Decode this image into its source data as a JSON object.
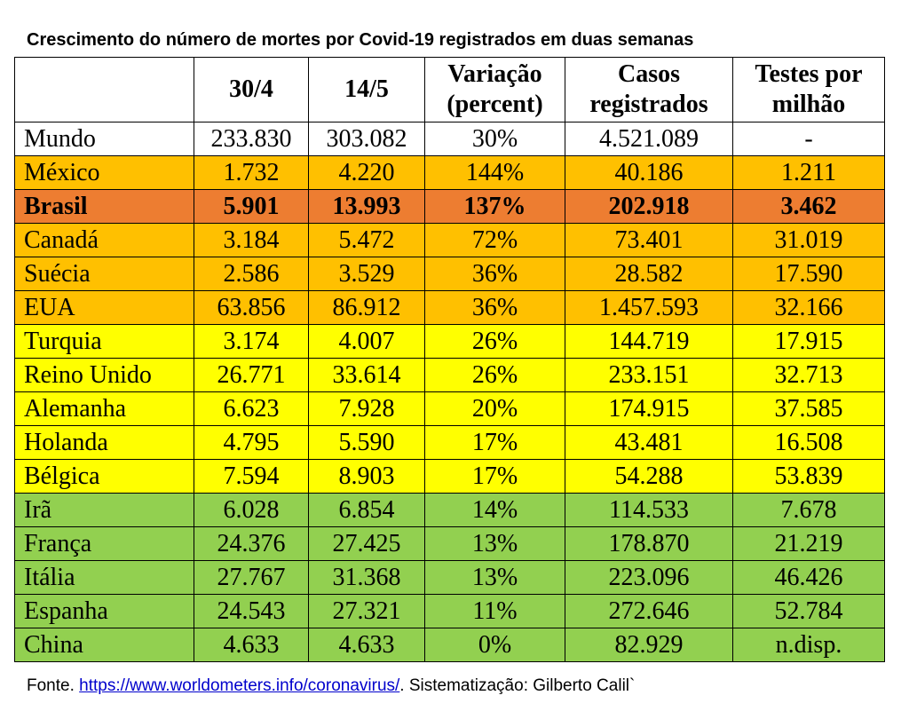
{
  "title": "Crescimento do número de mortes por Covid-19 registrados em duas semanas",
  "colors": {
    "white": "#ffffff",
    "orange": "#ffc000",
    "dark_orange": "#ed7d31",
    "yellow": "#ffff00",
    "green": "#92d050"
  },
  "table": {
    "headers": [
      "",
      "30/4",
      "14/5",
      "Variação (percent)",
      "Casos registrados",
      "Testes por milhão"
    ],
    "rows": [
      {
        "cells": [
          "Mundo",
          "233.830",
          "303.082",
          "30%",
          "4.521.089",
          "-"
        ],
        "color": "white",
        "bold": false
      },
      {
        "cells": [
          "México",
          "1.732",
          "4.220",
          "144%",
          "40.186",
          "1.211"
        ],
        "color": "orange",
        "bold": false
      },
      {
        "cells": [
          "Brasil",
          "5.901",
          "13.993",
          "137%",
          "202.918",
          "3.462"
        ],
        "color": "dark_orange",
        "bold": true
      },
      {
        "cells": [
          "Canadá",
          "3.184",
          "5.472",
          "72%",
          "73.401",
          "31.019"
        ],
        "color": "orange",
        "bold": false
      },
      {
        "cells": [
          "Suécia",
          "2.586",
          "3.529",
          "36%",
          "28.582",
          "17.590"
        ],
        "color": "orange",
        "bold": false
      },
      {
        "cells": [
          "EUA",
          "63.856",
          "86.912",
          "36%",
          "1.457.593",
          "32.166"
        ],
        "color": "orange",
        "bold": false
      },
      {
        "cells": [
          "Turquia",
          "3.174",
          "4.007",
          "26%",
          "144.719",
          "17.915"
        ],
        "color": "yellow",
        "bold": false
      },
      {
        "cells": [
          "Reino Unido",
          "26.771",
          "33.614",
          "26%",
          "233.151",
          "32.713"
        ],
        "color": "yellow",
        "bold": false
      },
      {
        "cells": [
          "Alemanha",
          "6.623",
          "7.928",
          "20%",
          "174.915",
          "37.585"
        ],
        "color": "yellow",
        "bold": false
      },
      {
        "cells": [
          "Holanda",
          "4.795",
          "5.590",
          "17%",
          "43.481",
          "16.508"
        ],
        "color": "yellow",
        "bold": false
      },
      {
        "cells": [
          "Bélgica",
          "7.594",
          "8.903",
          "17%",
          "54.288",
          "53.839"
        ],
        "color": "yellow",
        "bold": false
      },
      {
        "cells": [
          "Irã",
          "6.028",
          "6.854",
          "14%",
          "114.533",
          "7.678"
        ],
        "color": "green",
        "bold": false
      },
      {
        "cells": [
          "França",
          "24.376",
          "27.425",
          "13%",
          "178.870",
          "21.219"
        ],
        "color": "green",
        "bold": false
      },
      {
        "cells": [
          "Itália",
          "27.767",
          "31.368",
          "13%",
          "223.096",
          "46.426"
        ],
        "color": "green",
        "bold": false
      },
      {
        "cells": [
          "Espanha",
          "24.543",
          "27.321",
          "11%",
          "272.646",
          "52.784"
        ],
        "color": "green",
        "bold": false
      },
      {
        "cells": [
          "China",
          "4.633",
          "4.633",
          "0%",
          "82.929",
          "n.disp."
        ],
        "color": "green",
        "bold": false
      }
    ]
  },
  "footer": {
    "prefix": "Fonte. ",
    "link": "https://www.worldometers.info/coronavirus/",
    "suffix": ". Sistematização: Gilberto Calil`"
  }
}
